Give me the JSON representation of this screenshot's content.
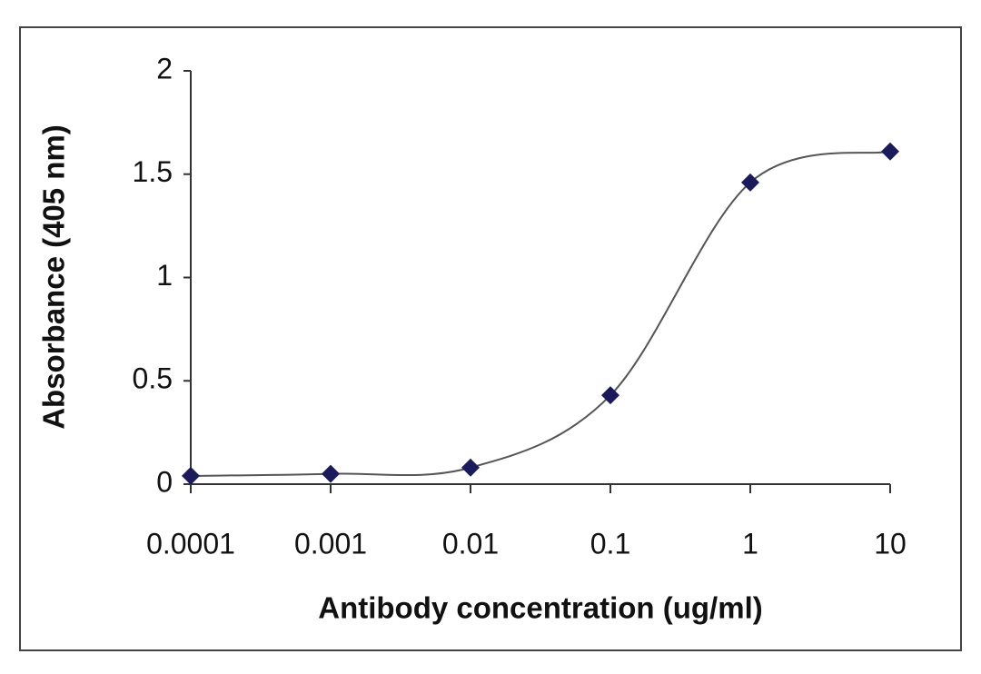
{
  "chart_data": {
    "type": "line",
    "x_label": "Antibody concentration (ug/ml)",
    "y_label": "Absorbance (405 nm)",
    "x": [
      0.0001,
      0.001,
      0.01,
      0.1,
      1,
      10
    ],
    "series": [
      {
        "color": "#1b1b5c",
        "values": [
          0.04,
          0.05,
          0.08,
          0.43,
          1.46,
          1.61
        ]
      }
    ],
    "xscale": "log",
    "xlim": [
      0.0001,
      10
    ],
    "xticks": [
      0.0001,
      0.001,
      0.01,
      0.1,
      1,
      10
    ],
    "ylim": [
      0,
      2
    ],
    "yticks": [
      0,
      0.5,
      1,
      1.5,
      2
    ],
    "smooth": true,
    "marker": "diamond",
    "grid": false
  }
}
